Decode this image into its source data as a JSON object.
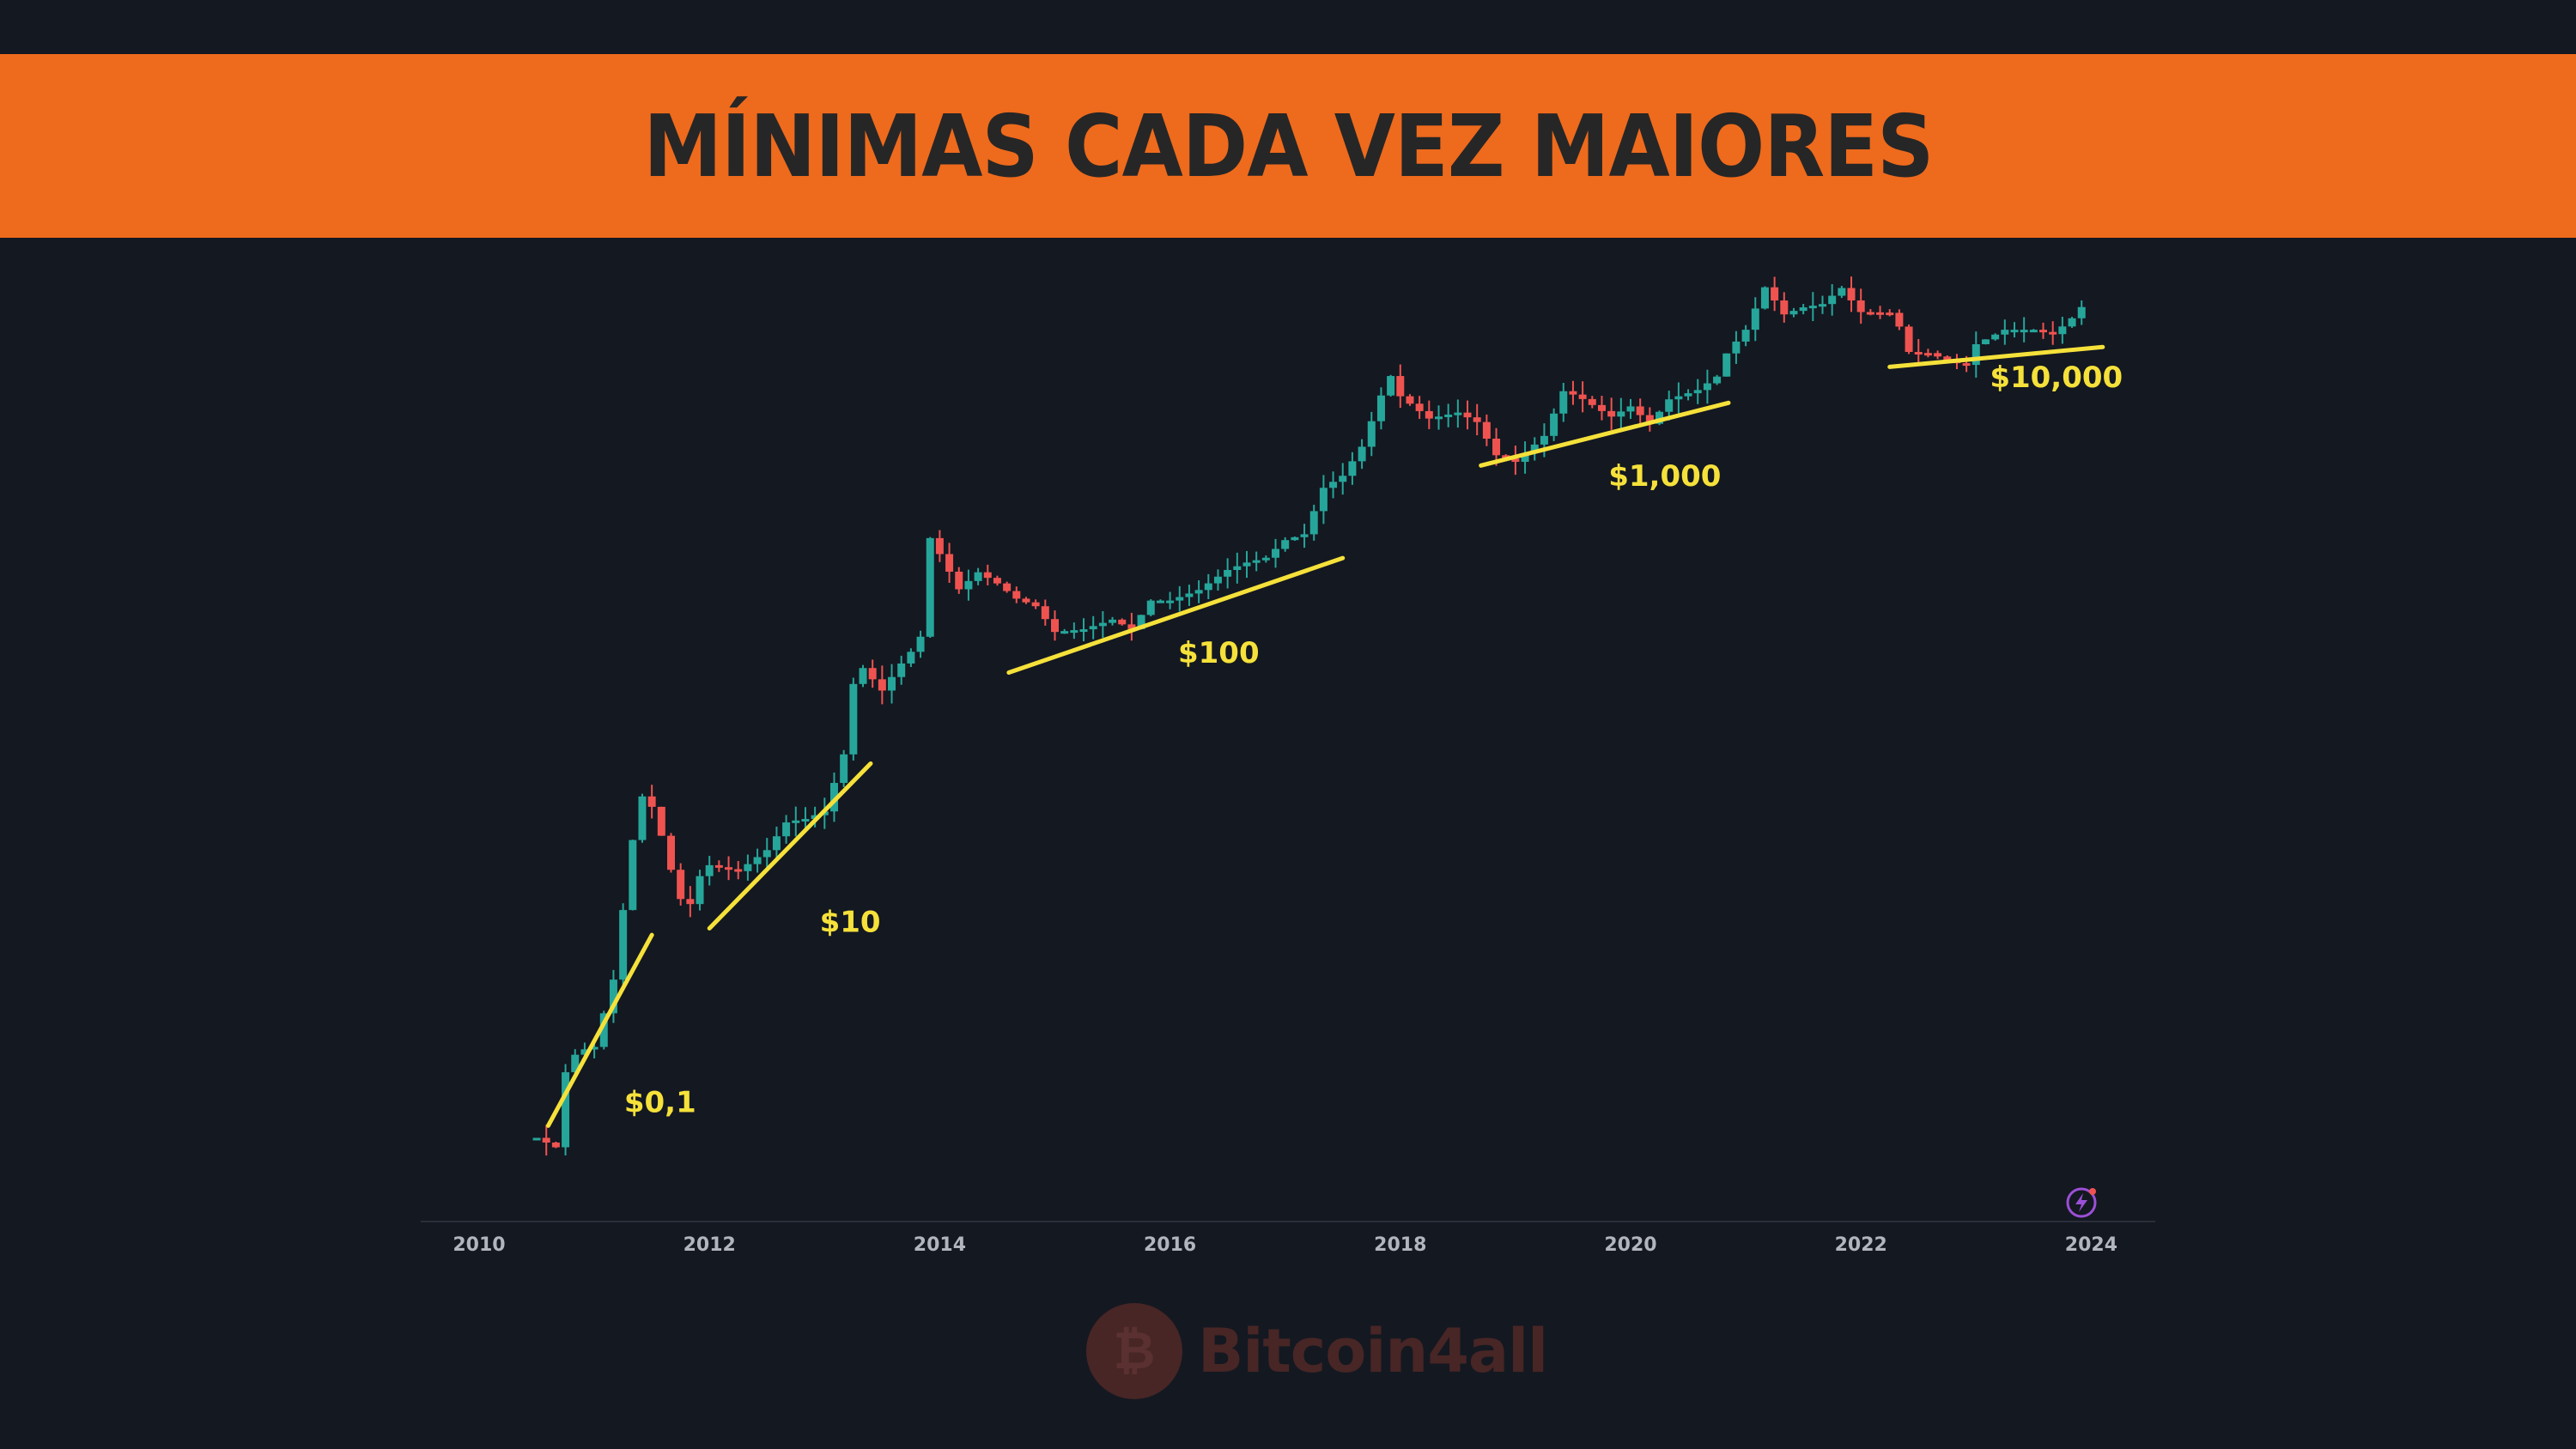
{
  "title": "MÍNIMAS CADA VEZ MAIORES",
  "watermark": {
    "name": "Bitcoin4all",
    "icon": "bitcoin-logo-icon",
    "color": "#4A2726"
  },
  "colors": {
    "background": "#141821",
    "banner": "#EE6A1C",
    "up": "#26A69A",
    "down": "#EF5350",
    "trendline": "#F5E13A",
    "axis_text": "#B2B5BE"
  },
  "chart_data": {
    "type": "candlestick",
    "interval": "monthly",
    "scale": "log",
    "title": "",
    "xlabel": "",
    "ylabel": "",
    "grid": false,
    "xlim": [
      2009.5,
      2024.0
    ],
    "ylim": [
      0.05,
      70000
    ],
    "x_ticks": [
      "2010",
      "2012",
      "2014",
      "2016",
      "2018",
      "2020",
      "2022",
      "2024"
    ],
    "close_path": [
      [
        2010.5,
        0.07
      ],
      [
        2010.67,
        0.06
      ],
      [
        2010.75,
        0.2
      ],
      [
        2010.85,
        0.28
      ],
      [
        2011.0,
        0.3
      ],
      [
        2011.17,
        0.9
      ],
      [
        2011.33,
        8
      ],
      [
        2011.42,
        17
      ],
      [
        2011.5,
        14
      ],
      [
        2011.58,
        9
      ],
      [
        2011.67,
        5
      ],
      [
        2011.75,
        3.2
      ],
      [
        2011.83,
        2.9
      ],
      [
        2011.92,
        4.7
      ],
      [
        2012.0,
        5.5
      ],
      [
        2012.25,
        5
      ],
      [
        2012.5,
        7
      ],
      [
        2012.67,
        11
      ],
      [
        2012.83,
        11.5
      ],
      [
        2013.0,
        13
      ],
      [
        2013.17,
        33
      ],
      [
        2013.25,
        100
      ],
      [
        2013.33,
        130
      ],
      [
        2013.5,
        90
      ],
      [
        2013.67,
        140
      ],
      [
        2013.83,
        200
      ],
      [
        2013.92,
        1100
      ],
      [
        2014.0,
        800
      ],
      [
        2014.17,
        450
      ],
      [
        2014.33,
        600
      ],
      [
        2014.5,
        500
      ],
      [
        2014.67,
        390
      ],
      [
        2014.83,
        350
      ],
      [
        2015.0,
        230
      ],
      [
        2015.25,
        240
      ],
      [
        2015.5,
        280
      ],
      [
        2015.67,
        240
      ],
      [
        2015.83,
        380
      ],
      [
        2016.0,
        380
      ],
      [
        2016.25,
        450
      ],
      [
        2016.5,
        620
      ],
      [
        2016.67,
        700
      ],
      [
        2016.83,
        750
      ],
      [
        2017.0,
        1000
      ],
      [
        2017.17,
        1100
      ],
      [
        2017.33,
        2300
      ],
      [
        2017.5,
        2800
      ],
      [
        2017.67,
        4500
      ],
      [
        2017.83,
        10000
      ],
      [
        2017.92,
        14000
      ],
      [
        2018.0,
        10000
      ],
      [
        2018.25,
        7000
      ],
      [
        2018.5,
        7700
      ],
      [
        2018.67,
        6600
      ],
      [
        2018.83,
        3900
      ],
      [
        2019.0,
        3500
      ],
      [
        2019.25,
        5300
      ],
      [
        2019.42,
        11000
      ],
      [
        2019.58,
        9600
      ],
      [
        2019.83,
        7200
      ],
      [
        2020.0,
        8500
      ],
      [
        2020.17,
        6400
      ],
      [
        2020.33,
        9500
      ],
      [
        2020.58,
        11000
      ],
      [
        2020.75,
        13700
      ],
      [
        2020.83,
        19700
      ],
      [
        2021.0,
        29000
      ],
      [
        2021.17,
        58000
      ],
      [
        2021.33,
        37000
      ],
      [
        2021.5,
        41500
      ],
      [
        2021.67,
        43800
      ],
      [
        2021.83,
        57000
      ],
      [
        2021.92,
        46000
      ],
      [
        2022.0,
        38500
      ],
      [
        2022.25,
        38000
      ],
      [
        2022.33,
        31000
      ],
      [
        2022.42,
        20000
      ],
      [
        2022.58,
        20000
      ],
      [
        2022.83,
        17000
      ],
      [
        2022.92,
        16500
      ],
      [
        2023.0,
        23000
      ],
      [
        2023.25,
        29000
      ],
      [
        2023.5,
        29000
      ],
      [
        2023.67,
        27000
      ],
      [
        2023.83,
        34600
      ],
      [
        2023.92,
        42000
      ]
    ],
    "trendlines": [
      {
        "label": "$0,1",
        "from": [
          2010.6,
          0.085
        ],
        "to": [
          2011.5,
          1.8
        ]
      },
      {
        "label": "$10",
        "from": [
          2012.0,
          2.0
        ],
        "to": [
          2013.4,
          28
        ]
      },
      {
        "label": "$100",
        "from": [
          2014.6,
          120
        ],
        "to": [
          2017.5,
          750
        ]
      },
      {
        "label": "$1,000",
        "from": [
          2018.7,
          3300
        ],
        "to": [
          2020.85,
          9000
        ]
      },
      {
        "label": "$10,000",
        "from": [
          2022.25,
          16000
        ],
        "to": [
          2024.1,
          22000
        ]
      }
    ],
    "annotations": [
      "$0,1",
      "$10",
      "$100",
      "$1,000",
      "$10,000"
    ]
  }
}
